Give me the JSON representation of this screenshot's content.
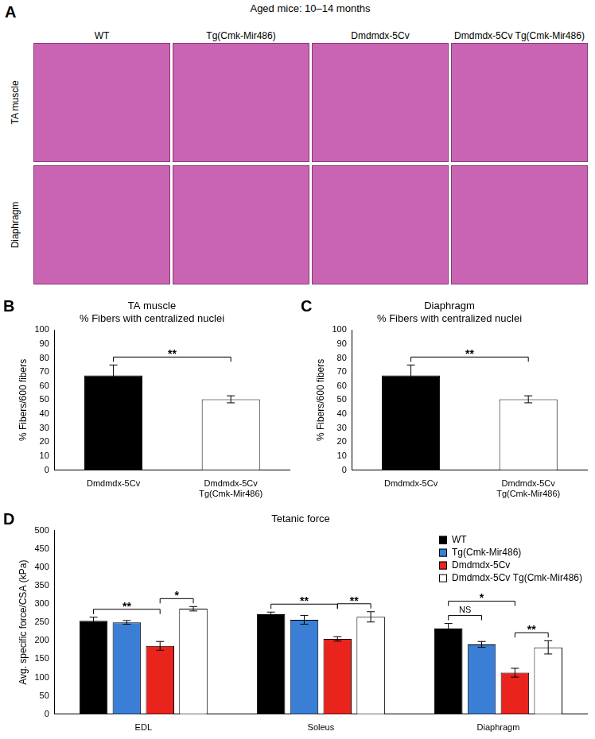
{
  "panel_a": {
    "panel": "A",
    "title": "Aged mice: 10–14 months",
    "columns": [
      "WT",
      "Tg(Cmk-Mir486)",
      "Dmdmdx-5Cv",
      "Dmdmdx-5Cv Tg(Cmk-Mir486)"
    ],
    "rows": [
      "TA muscle",
      "Diaphragm"
    ]
  },
  "chart_data": [
    {
      "panel": "B",
      "type": "bar",
      "title": [
        "TA muscle",
        "% Fibers with centralized nuclei"
      ],
      "y_label": "% Fibers/600 fibers",
      "categories": [
        "Dmdmdx-5Cv",
        "Dmdmdx-5Cv Tg(Cmk-Mir486)"
      ],
      "values": [
        67.5,
        50.5
      ],
      "errors": [
        7.5,
        2.5
      ],
      "colors": [
        "#000000",
        "#ffffff"
      ],
      "ylim": [
        0,
        100
      ],
      "yticks": [
        0,
        10,
        20,
        30,
        40,
        50,
        60,
        70,
        80,
        90,
        100
      ],
      "grid": false,
      "annotations": [
        {
          "text": "**",
          "from": 0,
          "to": 1
        }
      ]
    },
    {
      "panel": "C",
      "type": "bar",
      "title": [
        "Diaphragm",
        "% Fibers with centralized nuclei"
      ],
      "y_label": "% Fibers/600 fibers",
      "categories": [
        "Dmdmdx-5Cv",
        "Dmdmdx-5Cv Tg(Cmk-Mir486)"
      ],
      "values": [
        67.5,
        50.5
      ],
      "errors": [
        7.5,
        2.5
      ],
      "colors": [
        "#000000",
        "#ffffff"
      ],
      "ylim": [
        0,
        100
      ],
      "yticks": [
        0,
        10,
        20,
        30,
        40,
        50,
        60,
        70,
        80,
        90,
        100
      ],
      "grid": false,
      "annotations": [
        {
          "text": "**",
          "from": 0,
          "to": 1
        }
      ]
    },
    {
      "panel": "D",
      "type": "bar",
      "title": "Tetanic force",
      "y_label": "Avg. specific force/CSA (kPa)",
      "categories": [
        "EDL",
        "Soleus",
        "Diaphragm"
      ],
      "series": [
        {
          "name": "WT",
          "color": "#000000",
          "values": [
            254,
            272,
            233
          ],
          "errors": [
            10,
            6,
            14
          ]
        },
        {
          "name": "Tg(Cmk-Mir486)",
          "color": "#3a7fd5",
          "values": [
            250,
            257,
            190
          ],
          "errors": [
            5,
            12,
            8
          ]
        },
        {
          "name": "Dmdmdx-5Cv",
          "color": "#e8241d",
          "values": [
            186,
            205,
            113
          ],
          "errors": [
            12,
            6,
            12
          ]
        },
        {
          "name": "Dmdmdx-5Cv Tg(Cmk-Mir486)",
          "color": "#ffffff",
          "values": [
            287,
            265,
            182
          ],
          "errors": [
            6,
            14,
            18
          ]
        }
      ],
      "ylim": [
        0,
        500
      ],
      "yticks": [
        0,
        50,
        100,
        150,
        200,
        250,
        300,
        350,
        400,
        450,
        500
      ],
      "grid": false,
      "legend": "top right",
      "annotations": [
        {
          "text": "**",
          "category": 0,
          "from": 0,
          "to": 2
        },
        {
          "text": "*",
          "category": 0,
          "from": 2,
          "to": 3
        },
        {
          "text": "**",
          "category": 1,
          "from": 0,
          "to": 2
        },
        {
          "text": "**",
          "category": 1,
          "from": 2,
          "to": 3
        },
        {
          "text": "NS",
          "category": 2,
          "from": 0,
          "to": 1
        },
        {
          "text": "*",
          "category": 2,
          "from": 0,
          "to": 2
        },
        {
          "text": "**",
          "category": 2,
          "from": 2,
          "to": 3
        }
      ]
    }
  ]
}
